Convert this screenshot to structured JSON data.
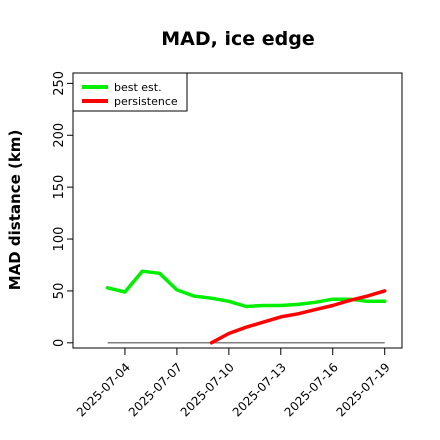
{
  "chart_data": {
    "type": "line",
    "title": "MAD, ice edge",
    "xlabel": "",
    "ylabel": "MAD distance (km)",
    "x_ticks": [
      "2025-07-04",
      "2025-07-07",
      "2025-07-10",
      "2025-07-13",
      "2025-07-16",
      "2025-07-19"
    ],
    "x_range": [
      "2025-07-01",
      "2025-07-20"
    ],
    "ylim": [
      -5,
      260
    ],
    "y_ticks": [
      0,
      50,
      100,
      150,
      200,
      250
    ],
    "grid": false,
    "legend_position": "top-left",
    "reference_line": {
      "y": 0,
      "color": "#808080"
    },
    "series": [
      {
        "name": "best est.",
        "color": "#00ee00",
        "points": [
          [
            "2025-07-03",
            53
          ],
          [
            "2025-07-04",
            49
          ],
          [
            "2025-07-05",
            69
          ],
          [
            "2025-07-06",
            67
          ],
          [
            "2025-07-07",
            51
          ],
          [
            "2025-07-08",
            45
          ],
          [
            "2025-07-09",
            43
          ],
          [
            "2025-07-10",
            40
          ],
          [
            "2025-07-11",
            35
          ],
          [
            "2025-07-12",
            36
          ],
          [
            "2025-07-13",
            36
          ],
          [
            "2025-07-14",
            37
          ],
          [
            "2025-07-15",
            39
          ],
          [
            "2025-07-16",
            42
          ],
          [
            "2025-07-17",
            42
          ],
          [
            "2025-07-18",
            40
          ],
          [
            "2025-07-19",
            40
          ]
        ]
      },
      {
        "name": "persistence",
        "color": "#ff0000",
        "points": [
          [
            "2025-07-09",
            0
          ],
          [
            "2025-07-10",
            9
          ],
          [
            "2025-07-11",
            15
          ],
          [
            "2025-07-12",
            20
          ],
          [
            "2025-07-13",
            25
          ],
          [
            "2025-07-14",
            28
          ],
          [
            "2025-07-15",
            32
          ],
          [
            "2025-07-16",
            36
          ],
          [
            "2025-07-17",
            41
          ],
          [
            "2025-07-18",
            45
          ],
          [
            "2025-07-19",
            50
          ]
        ]
      }
    ]
  }
}
